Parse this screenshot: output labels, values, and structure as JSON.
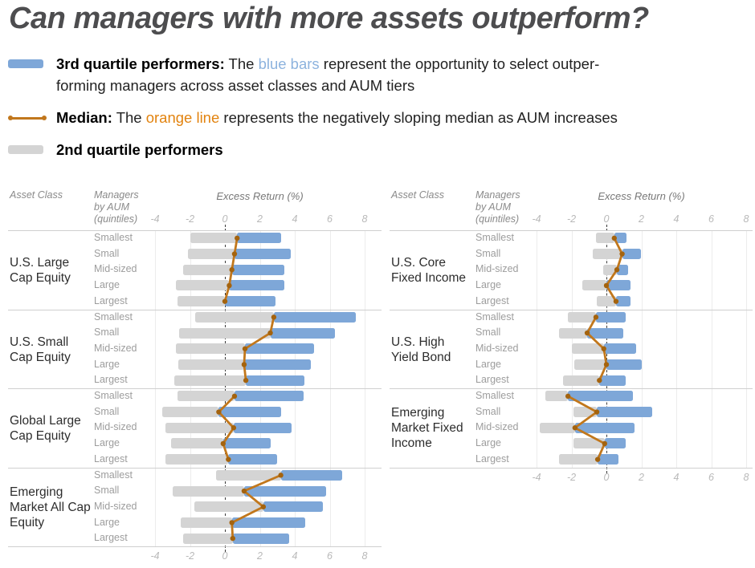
{
  "title": "Can managers with more assets outperform?",
  "legend": {
    "third_quartile": {
      "label": "3rd quartile performers:",
      "pre": " The ",
      "highlight": "blue bars",
      "post": " represent the opportunity to select outper-",
      "line2": "forming managers across asset classes and AUM tiers"
    },
    "median": {
      "label": "Median:",
      "pre": " The ",
      "highlight": "orange line",
      "post": " represents the negatively sloping median as AUM increases"
    },
    "second_quartile": {
      "label": "2nd quartile performers"
    }
  },
  "colors": {
    "blue_bar": "#7ea7d8",
    "gray_bar": "#d4d4d4",
    "orange_line": "#c1771c",
    "orange_marker": "#a4630e",
    "blue_text": "#8db3de",
    "orange_text": "#e2830f"
  },
  "chart_data": [
    {
      "type": "bar",
      "orientation": "horizontal",
      "headers": {
        "asset_class": "Asset Class",
        "managers": "Managers\nby AUM\n(quintiles)",
        "axis": "Excess Return (%)"
      },
      "x_ticks": [
        -4,
        -2,
        0,
        2,
        4,
        6,
        8
      ],
      "xlim": [
        -4,
        8
      ],
      "grid": true,
      "quintile_labels": [
        "Smallest",
        "Small",
        "Mid-sized",
        "Large",
        "Largest"
      ],
      "row_value_format": [
        "q25_2nd_quartile_start",
        "median",
        "q75_3rd_quartile_end"
      ],
      "groups": [
        {
          "label": "U.S. Large Cap Equity",
          "rows": [
            [
              -2.0,
              0.7,
              3.2
            ],
            [
              -2.1,
              0.55,
              3.75
            ],
            [
              -2.4,
              0.4,
              3.4
            ],
            [
              -2.8,
              0.25,
              3.4
            ],
            [
              -2.7,
              0.0,
              2.9
            ]
          ]
        },
        {
          "label": "U.S. Small Cap Equity",
          "rows": [
            [
              -1.7,
              2.8,
              7.5
            ],
            [
              -2.6,
              2.6,
              6.3
            ],
            [
              -2.8,
              1.15,
              5.1
            ],
            [
              -2.65,
              1.1,
              4.9
            ],
            [
              -2.9,
              1.2,
              4.55
            ]
          ]
        },
        {
          "label": "Global Large Cap Equity",
          "rows": [
            [
              -2.7,
              0.55,
              4.5
            ],
            [
              -3.6,
              -0.35,
              3.2
            ],
            [
              -3.4,
              0.5,
              3.8
            ],
            [
              -3.1,
              -0.1,
              2.6
            ],
            [
              -3.4,
              0.2,
              3.0
            ]
          ]
        },
        {
          "label": "Emerging Market All Cap Equity",
          "rows": [
            [
              -0.5,
              3.2,
              6.7
            ],
            [
              -3.0,
              1.1,
              5.8
            ],
            [
              -1.75,
              2.2,
              5.6
            ],
            [
              -2.55,
              0.4,
              4.6
            ],
            [
              -2.4,
              0.45,
              3.7
            ]
          ]
        }
      ]
    },
    {
      "type": "bar",
      "orientation": "horizontal",
      "headers": {
        "asset_class": "Asset Class",
        "managers": "Managers\nby AUM\n(quintiles)",
        "axis": "Excess Return (%)"
      },
      "x_ticks": [
        -4,
        -2,
        0,
        2,
        4,
        6,
        8
      ],
      "xlim": [
        -4,
        8
      ],
      "grid": true,
      "quintile_labels": [
        "Smallest",
        "Small",
        "Mid-sized",
        "Large",
        "Largest"
      ],
      "row_value_format": [
        "q25_2nd_quartile_start",
        "median",
        "q75_3rd_quartile_end"
      ],
      "groups": [
        {
          "label": "U.S. Core Fixed Income",
          "rows": [
            [
              -0.6,
              0.45,
              1.15
            ],
            [
              -0.8,
              0.9,
              2.0
            ],
            [
              -0.2,
              0.6,
              1.25
            ],
            [
              -1.4,
              0.0,
              1.4
            ],
            [
              -0.55,
              0.55,
              1.4
            ]
          ]
        },
        {
          "label": "U.S. High Yield Bond",
          "rows": [
            [
              -2.2,
              -0.6,
              1.1
            ],
            [
              -2.7,
              -1.1,
              0.95
            ],
            [
              -2.0,
              -0.15,
              1.7
            ],
            [
              -1.85,
              0.0,
              2.0
            ],
            [
              -2.5,
              -0.4,
              1.1
            ]
          ]
        },
        {
          "label": "Emerging Market Fixed Income",
          "rows": [
            [
              -3.5,
              -2.2,
              1.5
            ],
            [
              -1.9,
              -0.55,
              2.6
            ],
            [
              -3.8,
              -1.8,
              1.6
            ],
            [
              -1.9,
              -0.1,
              1.1
            ],
            [
              -2.7,
              -0.5,
              0.7
            ]
          ]
        }
      ]
    }
  ]
}
